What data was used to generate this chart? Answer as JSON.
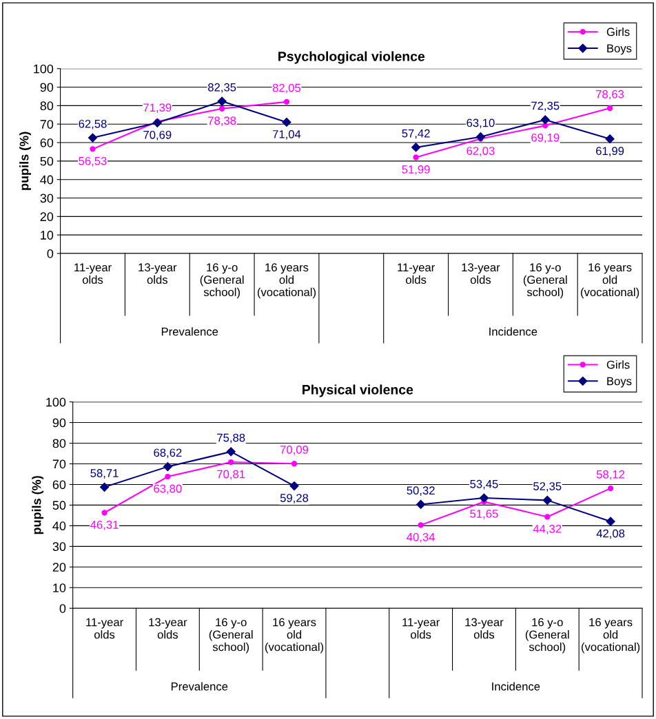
{
  "chart_data": [
    {
      "type": "line",
      "title": "Psychological violence",
      "ylabel": "pupils (%)",
      "categories": [
        "11-year\nolds",
        "13-year\nolds",
        "16 y-o\n(General\nschool)",
        "16 years\nold\n(vocational)",
        null,
        "11-year\nolds",
        "13-year\nolds",
        "16 y-o\n(General\nschool)",
        "16 years\nold\n(vocational)"
      ],
      "annotations": [
        "Prevalence",
        "Incidence"
      ],
      "ylim": [
        0,
        100
      ],
      "yticks": [
        0,
        10,
        20,
        30,
        40,
        50,
        60,
        70,
        80,
        90,
        100
      ],
      "grid": "y",
      "legend": "top right",
      "series": [
        {
          "name": "Girls",
          "color": "#ff00ff",
          "marker": "circle",
          "values": [
            56.53,
            71.39,
            78.38,
            82.05,
            null,
            51.99,
            62.03,
            69.19,
            78.63
          ],
          "value_labels": [
            "56,53",
            "71,39",
            "78,38",
            "82,05",
            null,
            "51,99",
            "62,03",
            "69,19",
            "78,63"
          ]
        },
        {
          "name": "Boys",
          "color": "#000080",
          "marker": "diamond",
          "values": [
            62.58,
            70.69,
            82.35,
            71.04,
            null,
            57.42,
            63.1,
            72.35,
            61.99
          ],
          "value_labels": [
            "62,58",
            "70,69",
            "82,35",
            "71,04",
            null,
            "57,42",
            "63,10",
            "72,35",
            "61,99"
          ]
        }
      ]
    },
    {
      "type": "line",
      "title": "Physical violence",
      "ylabel": "pupils (%)",
      "categories": [
        "11-year\nolds",
        "13-year\nolds",
        "16 y-o\n(General\nschool)",
        "16 years\nold\n(vocational)",
        null,
        "11-year\nolds",
        "13-year\nolds",
        "16 y-o\n(General\nschool)",
        "16 years\nold\n(vocational)"
      ],
      "annotations": [
        "Prevalence",
        "Incidence"
      ],
      "ylim": [
        0,
        100
      ],
      "yticks": [
        0,
        10,
        20,
        30,
        40,
        50,
        60,
        70,
        80,
        90,
        100
      ],
      "grid": "y",
      "legend": "top right",
      "series": [
        {
          "name": "Girls",
          "color": "#ff00ff",
          "marker": "circle",
          "values": [
            46.31,
            63.8,
            70.81,
            70.09,
            null,
            40.34,
            51.65,
            44.32,
            58.12
          ],
          "value_labels": [
            "46,31",
            "63,80",
            "70,81",
            "70,09",
            null,
            "40,34",
            "51,65",
            "44,32",
            "58,12"
          ]
        },
        {
          "name": "Boys",
          "color": "#000080",
          "marker": "diamond",
          "values": [
            58.71,
            68.62,
            75.88,
            59.28,
            null,
            50.32,
            53.45,
            52.35,
            42.08
          ],
          "value_labels": [
            "58,71",
            "68,62",
            "75,88",
            "59,28",
            null,
            "50,32",
            "53,45",
            "52,35",
            "42,08"
          ]
        }
      ]
    }
  ]
}
